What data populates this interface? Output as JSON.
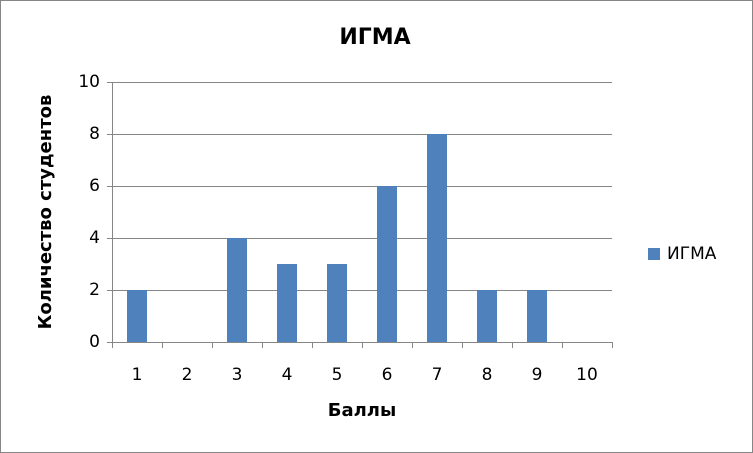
{
  "chart_data": {
    "type": "bar",
    "title": "ИГМА",
    "x_label": "Баллы",
    "y_label": "Количество студентов",
    "categories": [
      "1",
      "2",
      "3",
      "4",
      "5",
      "6",
      "7",
      "8",
      "9",
      "10"
    ],
    "series": [
      {
        "name": "ИГМА",
        "color": "#4f81bd",
        "values": [
          2,
          0,
          4,
          3,
          3,
          6,
          8,
          2,
          2,
          0
        ]
      }
    ],
    "ylim": [
      0,
      10
    ],
    "yticks": [
      0,
      2,
      4,
      6,
      8,
      10
    ],
    "grid": true,
    "legend": "right"
  }
}
